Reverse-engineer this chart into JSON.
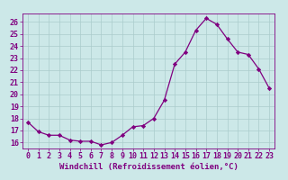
{
  "x": [
    0,
    1,
    2,
    3,
    4,
    5,
    6,
    7,
    8,
    9,
    10,
    11,
    12,
    13,
    14,
    15,
    16,
    17,
    18,
    19,
    20,
    21,
    22,
    23
  ],
  "y": [
    17.7,
    16.9,
    16.6,
    16.6,
    16.2,
    16.1,
    16.1,
    15.8,
    16.0,
    16.6,
    17.3,
    17.4,
    18.0,
    19.5,
    22.5,
    23.5,
    25.3,
    26.3,
    25.8,
    24.6,
    23.5,
    23.3,
    22.1,
    20.5
  ],
  "line_color": "#800080",
  "marker": "D",
  "marker_size": 2.2,
  "bg_color": "#cce8e8",
  "grid_color": "#aacccc",
  "xlabel": "Windchill (Refroidissement éolien,°C)",
  "ylim": [
    15.5,
    26.7
  ],
  "xlim": [
    -0.5,
    23.5
  ],
  "yticks": [
    16,
    17,
    18,
    19,
    20,
    21,
    22,
    23,
    24,
    25,
    26
  ],
  "xticks": [
    0,
    1,
    2,
    3,
    4,
    5,
    6,
    7,
    8,
    9,
    10,
    11,
    12,
    13,
    14,
    15,
    16,
    17,
    18,
    19,
    20,
    21,
    22,
    23
  ],
  "tick_color": "#800080",
  "font_size": 6.0,
  "xlabel_fontsize": 6.5,
  "linewidth": 0.9
}
